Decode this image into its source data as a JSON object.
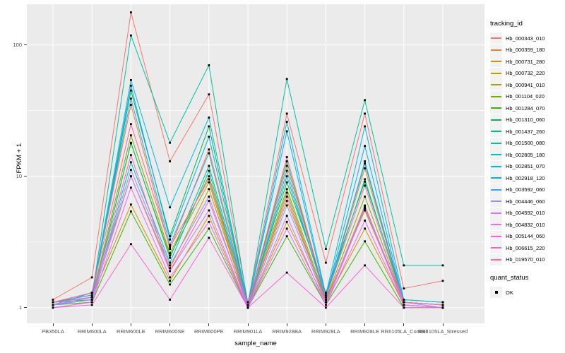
{
  "axes": {
    "y_label": "FPKM + 1",
    "x_label": "sample_name"
  },
  "legend": {
    "tracking_title": "tracking_id",
    "quant_title": "quant_status",
    "quant_items": [
      {
        "label": "OK",
        "marker": "black-square"
      }
    ]
  },
  "style": {
    "panel_bg": "#EBEBEB",
    "grid_major": "#FFFFFF",
    "grid_minor": "#FFFFFF",
    "tick_color": "#333333",
    "tick_label_color": "#4D4D4D",
    "point_color": "#000000",
    "legend_key_bg": "#F2F2F2"
  },
  "chart_data": {
    "type": "line",
    "title": "",
    "xlabel": "sample_name",
    "ylabel": "FPKM + 1",
    "x_type": "categorical",
    "y_scale": "log10",
    "ylim": [
      0.76,
      204
    ],
    "y_ticks": [
      1,
      10,
      100
    ],
    "y_minor_gridlines": [
      3.162,
      31.62
    ],
    "grid": true,
    "legend_position": "right",
    "point_marker": {
      "shape": "square",
      "color": "#000000",
      "size": 2.8,
      "legend_label": "OK"
    },
    "categories": [
      "PB350LA",
      "RRIM600LA",
      "RRIM600LE",
      "RRIM600SE",
      "RRIM600PE",
      "RRIM901LA",
      "RRIM928BA",
      "RRIM928LA",
      "RRIM928LE",
      "RRII105LA_Control",
      "RRII105LA_Stressed"
    ],
    "series": [
      {
        "name": "Hb_000343_010",
        "color": "#F8766D",
        "values": [
          1.15,
          1.7,
          177,
          13,
          42,
          1.1,
          30,
          2.2,
          30,
          1.4,
          1.6
        ]
      },
      {
        "name": "Hb_000359_180",
        "color": "#EA8331",
        "values": [
          1.1,
          1.3,
          35,
          2.8,
          16,
          1.05,
          12,
          1.2,
          11.5,
          1.1,
          1.05
        ]
      },
      {
        "name": "Hb_000731_280",
        "color": "#D89000",
        "values": [
          1.05,
          1.2,
          6.1,
          1.6,
          5.0,
          1.0,
          4.5,
          1.1,
          4.0,
          1.05,
          1.0
        ]
      },
      {
        "name": "Hb_000732_220",
        "color": "#C09B00",
        "values": [
          1.1,
          1.25,
          10,
          2.0,
          8.0,
          1.05,
          6.5,
          1.15,
          5.5,
          1.1,
          1.05
        ]
      },
      {
        "name": "Hb_000941_010",
        "color": "#A3A500",
        "values": [
          1.05,
          1.15,
          17.8,
          2.5,
          9.0,
          1.0,
          7.5,
          1.1,
          6.0,
          1.05,
          1.0
        ]
      },
      {
        "name": "Hb_001104_020",
        "color": "#7CAE00",
        "values": [
          1.1,
          1.2,
          20.5,
          2.6,
          10,
          1.05,
          8.0,
          1.15,
          7.0,
          1.1,
          1.05
        ]
      },
      {
        "name": "Hb_001284_070",
        "color": "#39B600",
        "values": [
          1.05,
          1.1,
          5.4,
          1.5,
          4.0,
          1.0,
          3.5,
          1.05,
          3.2,
          1.0,
          1.0
        ]
      },
      {
        "name": "Hb_001310_060",
        "color": "#00BB4E",
        "values": [
          1.1,
          1.2,
          45,
          3.5,
          24,
          1.05,
          9.0,
          1.3,
          9.1,
          1.15,
          1.1
        ]
      },
      {
        "name": "Hb_001437_260",
        "color": "#00BF7D",
        "values": [
          1.1,
          1.15,
          18,
          2.4,
          12,
          1.05,
          13,
          1.2,
          12.5,
          1.1,
          1.05
        ]
      },
      {
        "name": "Hb_001500_080",
        "color": "#00C1A3",
        "values": [
          1.1,
          1.2,
          118,
          18,
          70,
          1.05,
          55,
          2.8,
          38,
          2.1,
          2.1
        ]
      },
      {
        "name": "Hb_002805_180",
        "color": "#00BFC4",
        "values": [
          1.05,
          1.15,
          12.8,
          2.2,
          11,
          1.0,
          10,
          1.2,
          9.5,
          1.1,
          1.05
        ]
      },
      {
        "name": "Hb_002851_070",
        "color": "#00BAE0",
        "values": [
          1.1,
          1.25,
          54,
          5.8,
          28,
          1.05,
          26,
          1.25,
          24,
          1.15,
          1.1
        ]
      },
      {
        "name": "Hb_002918_120",
        "color": "#00B0F6",
        "values": [
          1.1,
          1.2,
          49,
          3.3,
          20,
          1.05,
          22,
          1.2,
          17,
          1.1,
          1.05
        ]
      },
      {
        "name": "Hb_003592_060",
        "color": "#35A2FF",
        "values": [
          1.05,
          1.3,
          39,
          3.0,
          15,
          1.0,
          11,
          1.15,
          13,
          1.1,
          1.05
        ]
      },
      {
        "name": "Hb_004446_060",
        "color": "#9590FF",
        "values": [
          1.05,
          1.2,
          11.2,
          2.1,
          7.0,
          1.0,
          6.0,
          1.1,
          5.9,
          1.1,
          1.0
        ]
      },
      {
        "name": "Hb_004592_010",
        "color": "#C77CFF",
        "values": [
          1.05,
          1.15,
          10,
          1.9,
          5.5,
          1.0,
          5.0,
          1.05,
          5.7,
          1.05,
          1.0
        ]
      },
      {
        "name": "Hb_004832_010",
        "color": "#E76BF3",
        "values": [
          1.0,
          1.1,
          8.2,
          1.7,
          4.5,
          1.0,
          4.0,
          1.05,
          4.6,
          1.05,
          1.0
        ]
      },
      {
        "name": "Hb_005144_060",
        "color": "#FA62DB",
        "values": [
          1.0,
          1.05,
          3.05,
          1.15,
          3.4,
          1.0,
          1.85,
          1.0,
          2.1,
          1.0,
          1.0
        ]
      },
      {
        "name": "Hb_006615_220",
        "color": "#FF62BC",
        "values": [
          1.1,
          1.2,
          14.5,
          1.9,
          6.5,
          1.05,
          7.0,
          1.1,
          5.8,
          1.1,
          1.05
        ]
      },
      {
        "name": "Hb_019570_010",
        "color": "#FF6A98",
        "values": [
          1.1,
          1.3,
          25,
          2.9,
          9.5,
          1.05,
          14,
          1.2,
          8.5,
          1.1,
          1.05
        ]
      }
    ]
  }
}
